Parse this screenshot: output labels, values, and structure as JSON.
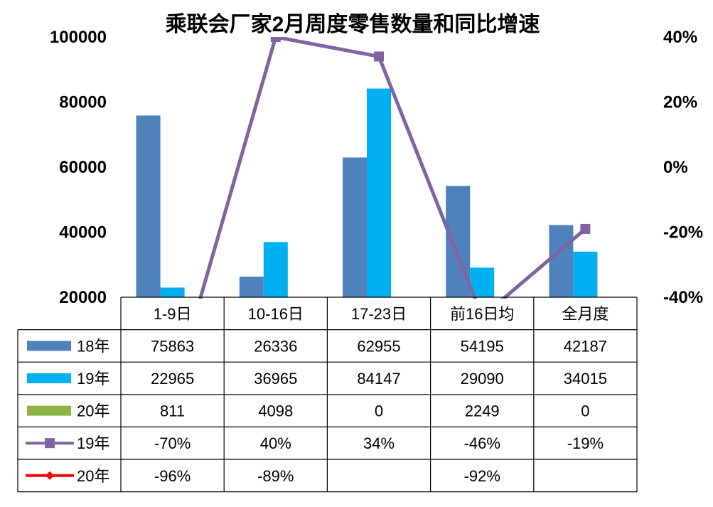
{
  "chart_data": {
    "type": "bar",
    "title": "乘联会厂家2月周度零售数量和同比增速",
    "categories": [
      "1-9日",
      "10-16日",
      "17-23日",
      "前16日均",
      "全月度"
    ],
    "y_left": {
      "ylim": [
        20000,
        100000
      ],
      "ticks": [
        "20000",
        "40000",
        "60000",
        "80000",
        "100000"
      ]
    },
    "y_right": {
      "ylim": [
        -40,
        40
      ],
      "ticks": [
        "-40%",
        "-20%",
        "0%",
        "20%",
        "40%"
      ]
    },
    "bar_series": [
      {
        "name": "18年",
        "color": "#4F81BD",
        "values": [
          75863,
          26336,
          62955,
          54195,
          42187
        ],
        "table": [
          "75863",
          "26336",
          "62955",
          "54195",
          "42187"
        ]
      },
      {
        "name": "19年",
        "color": "#00B0F0",
        "values": [
          22965,
          36965,
          84147,
          29090,
          34015
        ],
        "table": [
          "22965",
          "36965",
          "84147",
          "29090",
          "34015"
        ]
      },
      {
        "name": "20年",
        "color": "#8DB145",
        "values": [
          811,
          4098,
          0,
          2249,
          0
        ],
        "table": [
          "811",
          "4098",
          "0",
          "2249",
          "0"
        ]
      }
    ],
    "line_series": [
      {
        "name": "19年",
        "color": "#8064A2",
        "marker": "square",
        "values": [
          -70,
          40,
          34,
          -46,
          -19
        ],
        "table": [
          "-70%",
          "40%",
          "34%",
          "-46%",
          "-19%"
        ]
      },
      {
        "name": "20年",
        "color": "#FF0000",
        "marker": "diamond",
        "values": [
          -96,
          -89,
          null,
          -92,
          null
        ],
        "table": [
          "-96%",
          "-89%",
          "",
          "-92%",
          ""
        ]
      }
    ],
    "legend": "data-table"
  }
}
